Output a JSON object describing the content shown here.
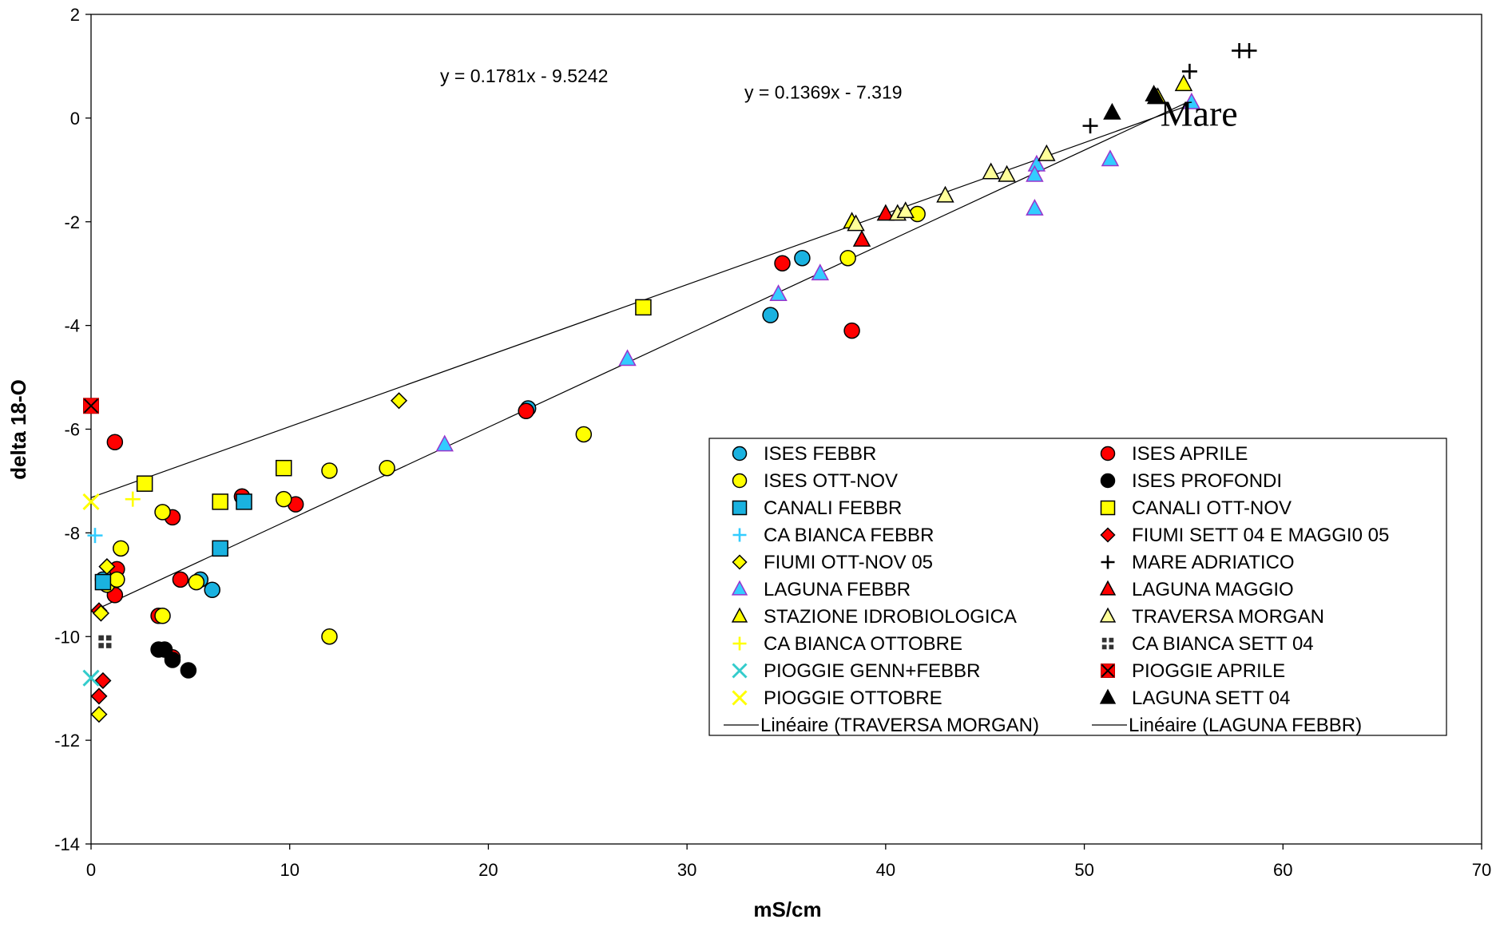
{
  "chart_data": {
    "type": "scatter",
    "title": "",
    "xlabel": "mS/cm",
    "ylabel": "delta 18-O",
    "xlim": [
      0,
      70
    ],
    "ylim": [
      -14,
      2
    ],
    "xticks": [
      0,
      10,
      20,
      30,
      40,
      50,
      60,
      70
    ],
    "yticks": [
      2,
      0,
      -2,
      -4,
      -6,
      -8,
      -10,
      -12,
      -14
    ],
    "grid": false,
    "legend_position": "lower-right",
    "annotations": [
      {
        "text": "y = 0.1781x - 9.5242",
        "x": 23,
        "y": 0.8
      },
      {
        "text": "y = 0.1369x - 7.319",
        "x": 39,
        "y": 0.5
      },
      {
        "text": "Mare",
        "x": 57,
        "y": 0.1
      }
    ],
    "colors": {
      "cyan": "#1ab2e0",
      "red": "#ff0000",
      "yellow": "#ffff00",
      "black": "#000000",
      "purple": "#9933cc",
      "lightblue": "#33ccff",
      "pale_yellow": "#ffff99",
      "dark_gray": "#333333"
    },
    "series": [
      {
        "name": "ISES FEBBR",
        "marker": "circle",
        "fill": "#1ab2e0",
        "stroke": "#000",
        "points": [
          [
            0.6,
            -8.9
          ],
          [
            1.2,
            -8.9
          ],
          [
            5.5,
            -8.9
          ],
          [
            6.1,
            -9.1
          ],
          [
            7.6,
            -7.3
          ],
          [
            22,
            -5.6
          ],
          [
            34.2,
            -3.8
          ],
          [
            35.8,
            -2.7
          ]
        ]
      },
      {
        "name": "ISES APRILE",
        "marker": "circle",
        "fill": "#ff0000",
        "stroke": "#000",
        "points": [
          [
            1.2,
            -6.25
          ],
          [
            1.3,
            -8.7
          ],
          [
            1.2,
            -9.2
          ],
          [
            4.1,
            -7.7
          ],
          [
            4.5,
            -8.9
          ],
          [
            3.4,
            -9.6
          ],
          [
            4.1,
            -10.4
          ],
          [
            7.6,
            -7.3
          ],
          [
            10.3,
            -7.45
          ],
          [
            21.9,
            -5.65
          ],
          [
            34.8,
            -2.8
          ],
          [
            38.3,
            -4.1
          ]
        ]
      },
      {
        "name": "ISES OTT-NOV",
        "marker": "circle",
        "fill": "#ffff00",
        "stroke": "#000",
        "points": [
          [
            0.8,
            -9.0
          ],
          [
            1.3,
            -8.9
          ],
          [
            1.5,
            -8.3
          ],
          [
            3.6,
            -7.6
          ],
          [
            3.6,
            -9.6
          ],
          [
            5.3,
            -8.95
          ],
          [
            9.7,
            -7.35
          ],
          [
            12,
            -6.8
          ],
          [
            12,
            -10
          ],
          [
            14.9,
            -6.75
          ],
          [
            24.8,
            -6.1
          ],
          [
            38.1,
            -2.7
          ],
          [
            41.6,
            -1.85
          ]
        ]
      },
      {
        "name": "ISES PROFONDI",
        "marker": "circle",
        "fill": "#000000",
        "stroke": "#000",
        "points": [
          [
            3.4,
            -10.25
          ],
          [
            3.7,
            -10.25
          ],
          [
            4.1,
            -10.45
          ],
          [
            4.9,
            -10.65
          ]
        ]
      },
      {
        "name": "CANALI FEBBR",
        "marker": "square",
        "fill": "#1ab2e0",
        "stroke": "#000",
        "points": [
          [
            0.6,
            -8.95
          ],
          [
            6.5,
            -8.3
          ],
          [
            7.7,
            -7.4
          ]
        ]
      },
      {
        "name": "CANALI OTT-NOV",
        "marker": "square",
        "fill": "#ffff00",
        "stroke": "#000",
        "points": [
          [
            2.7,
            -7.05
          ],
          [
            6.5,
            -7.4
          ],
          [
            9.7,
            -6.75
          ],
          [
            27.8,
            -3.65
          ]
        ]
      },
      {
        "name": "CA BIANCA FEBBR",
        "marker": "plus",
        "fill": "#33ccff",
        "stroke": "#33ccff",
        "points": [
          [
            0.2,
            -8.05
          ]
        ]
      },
      {
        "name": "FIUMI SETT 04 E MAGGI0 05",
        "marker": "diamond",
        "fill": "#ff0000",
        "stroke": "#000",
        "points": [
          [
            0.4,
            -9.5
          ],
          [
            0.6,
            -10.85
          ],
          [
            0.4,
            -11.15
          ]
        ]
      },
      {
        "name": "FIUMI OTT-NOV 05",
        "marker": "diamond",
        "fill": "#ffff00",
        "stroke": "#000",
        "points": [
          [
            0.8,
            -8.65
          ],
          [
            0.5,
            -9.55
          ],
          [
            0.4,
            -11.5
          ],
          [
            15.5,
            -5.45
          ]
        ]
      },
      {
        "name": "MARE ADRIATICO",
        "marker": "plus",
        "fill": "#000000",
        "stroke": "#000",
        "points": [
          [
            50.3,
            -0.15
          ],
          [
            55.3,
            0.9
          ],
          [
            57.8,
            1.3
          ],
          [
            58.3,
            1.3
          ]
        ]
      },
      {
        "name": "LAGUNA FEBBR",
        "marker": "triangle",
        "fill": "#33ccff",
        "stroke": "#9933cc",
        "points": [
          [
            17.8,
            -6.3
          ],
          [
            27,
            -4.65
          ],
          [
            34.6,
            -3.4
          ],
          [
            36.7,
            -3
          ],
          [
            47.5,
            -1.75
          ],
          [
            47.6,
            -0.9
          ],
          [
            47.5,
            -1.1
          ],
          [
            51.3,
            -0.8
          ],
          [
            55.4,
            0.3
          ]
        ]
      },
      {
        "name": "LAGUNA MAGGIO",
        "marker": "triangle",
        "fill": "#ff0000",
        "stroke": "#000",
        "points": [
          [
            38.8,
            -2.35
          ],
          [
            40,
            -1.85
          ]
        ]
      },
      {
        "name": "STAZIONE IDROBIOLOGICA",
        "marker": "triangle",
        "fill": "#ffff00",
        "stroke": "#000",
        "points": [
          [
            38.3,
            -2
          ],
          [
            53.7,
            0.4
          ],
          [
            55,
            0.65
          ]
        ]
      },
      {
        "name": "TRAVERSA MORGAN",
        "marker": "triangle",
        "fill": "#ffff99",
        "stroke": "#000",
        "points": [
          [
            38.5,
            -2.05
          ],
          [
            40.6,
            -1.85
          ],
          [
            41,
            -1.8
          ],
          [
            43,
            -1.5
          ],
          [
            45.3,
            -1.05
          ],
          [
            46.1,
            -1.1
          ],
          [
            48.1,
            -0.7
          ]
        ]
      },
      {
        "name": "CA BIANCA OTTOBRE",
        "marker": "plus",
        "fill": "#ffff00",
        "stroke": "#ffff00",
        "points": [
          [
            2.1,
            -7.35
          ]
        ]
      },
      {
        "name": "CA BIANCA SETT 04",
        "marker": "gridsq",
        "fill": "#333333",
        "stroke": "#333333",
        "points": [
          [
            0.7,
            -10.1
          ]
        ]
      },
      {
        "name": "PIOGGIE GENN+FEBBR",
        "marker": "x",
        "fill": "#33cccc",
        "stroke": "#33cccc",
        "points": [
          [
            0,
            -10.8
          ]
        ]
      },
      {
        "name": "PIOGGIE APRILE",
        "marker": "xsquare",
        "fill": "#ff0000",
        "stroke": "#000",
        "points": [
          [
            0,
            -5.55
          ]
        ]
      },
      {
        "name": "PIOGGIE OTTOBRE",
        "marker": "x",
        "fill": "#ffff00",
        "stroke": "#ffff00",
        "points": [
          [
            0,
            -7.4
          ]
        ]
      },
      {
        "name": "LAGUNA SETT 04",
        "marker": "triangle",
        "fill": "#000000",
        "stroke": "#000",
        "points": [
          [
            51.4,
            0.1
          ],
          [
            53.5,
            0.45
          ],
          [
            53.6,
            0.4
          ]
        ]
      },
      {
        "name": "Linéaire (TRAVERSA MORGAN)",
        "marker": "line",
        "stroke": "#000",
        "slope": 0.1369,
        "intercept": -7.319,
        "x_range": [
          0,
          55.4
        ]
      },
      {
        "name": "Linéaire (LAGUNA FEBBR)",
        "marker": "line",
        "stroke": "#000",
        "slope": 0.1781,
        "intercept": -9.5242,
        "x_range": [
          0,
          55.4
        ]
      }
    ]
  }
}
